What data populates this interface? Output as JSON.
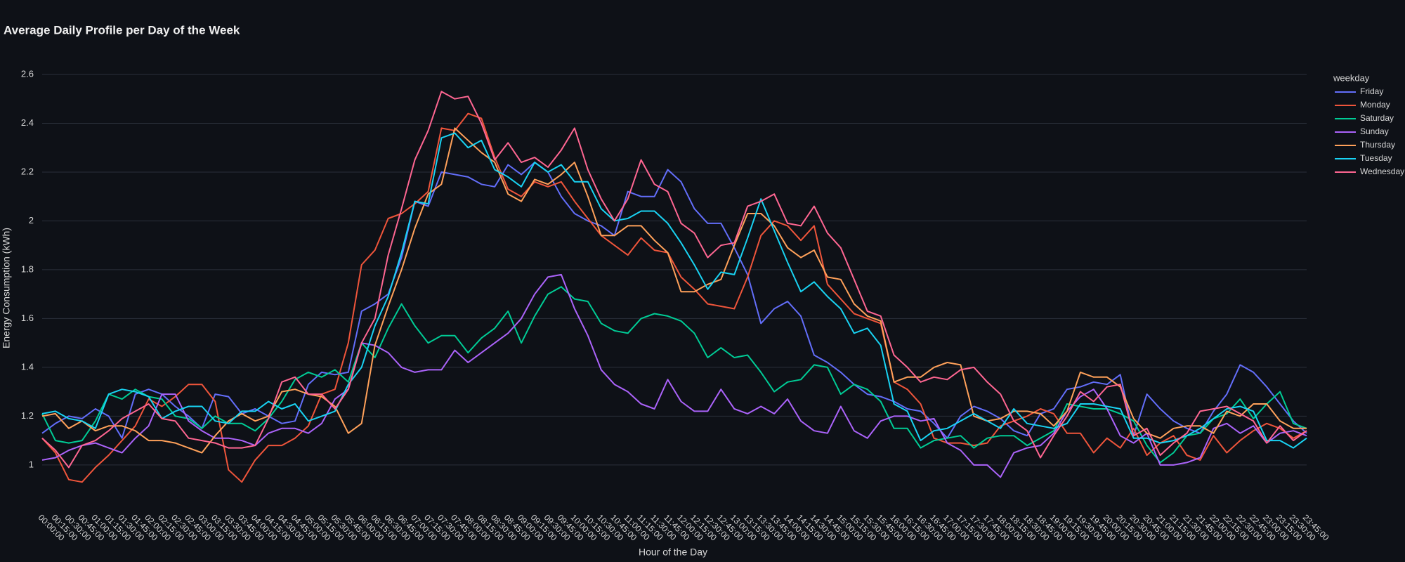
{
  "chart_data": {
    "type": "line",
    "title": "Average Daily Profile per Day of the Week",
    "x_label": "Hour of the Day",
    "y_label": "Energy Consumption (kWh)",
    "legend_title": "weekday",
    "legend": "right",
    "grid": true,
    "ylim": [
      0.85,
      2.65
    ],
    "yticks": [
      1,
      1.2,
      1.4,
      1.6,
      1.8,
      2,
      2.2,
      2.4,
      2.6
    ],
    "categories": [
      "00:00:00",
      "00:15:00",
      "00:30:00",
      "00:45:00",
      "01:00:00",
      "01:15:00",
      "01:30:00",
      "01:45:00",
      "02:00:00",
      "02:15:00",
      "02:30:00",
      "02:45:00",
      "03:00:00",
      "03:15:00",
      "03:30:00",
      "03:45:00",
      "04:00:00",
      "04:15:00",
      "04:30:00",
      "04:45:00",
      "05:00:00",
      "05:15:00",
      "05:30:00",
      "05:45:00",
      "06:00:00",
      "06:15:00",
      "06:30:00",
      "06:45:00",
      "07:00:00",
      "07:15:00",
      "07:30:00",
      "07:45:00",
      "08:00:00",
      "08:15:00",
      "08:30:00",
      "08:45:00",
      "09:00:00",
      "09:15:00",
      "09:30:00",
      "09:45:00",
      "10:00:00",
      "10:15:00",
      "10:30:00",
      "10:45:00",
      "11:00:00",
      "11:15:00",
      "11:30:00",
      "11:45:00",
      "12:00:00",
      "12:15:00",
      "12:30:00",
      "12:45:00",
      "13:00:00",
      "13:15:00",
      "13:30:00",
      "13:45:00",
      "14:00:00",
      "14:15:00",
      "14:30:00",
      "14:45:00",
      "15:00:00",
      "15:15:00",
      "15:30:00",
      "15:45:00",
      "16:00:00",
      "16:15:00",
      "16:30:00",
      "16:45:00",
      "17:00:00",
      "17:15:00",
      "17:30:00",
      "17:45:00",
      "18:00:00",
      "18:15:00",
      "18:30:00",
      "18:45:00",
      "19:00:00",
      "19:15:00",
      "19:30:00",
      "19:45:00",
      "20:00:00",
      "20:15:00",
      "20:30:00",
      "20:45:00",
      "21:00:00",
      "21:15:00",
      "21:30:00",
      "21:45:00",
      "22:00:00",
      "22:15:00",
      "22:30:00",
      "22:45:00",
      "23:00:00",
      "23:15:00",
      "23:30:00",
      "23:45:00"
    ],
    "series": [
      {
        "name": "Friday",
        "color": "#636efa",
        "values": [
          1.13,
          1.17,
          1.2,
          1.19,
          1.23,
          1.2,
          1.11,
          1.29,
          1.31,
          1.29,
          1.24,
          1.2,
          1.15,
          1.29,
          1.28,
          1.21,
          1.23,
          1.2,
          1.17,
          1.18,
          1.33,
          1.38,
          1.37,
          1.38,
          1.63,
          1.66,
          1.7,
          1.85,
          2.08,
          2.06,
          2.2,
          2.19,
          2.18,
          2.15,
          2.14,
          2.23,
          2.19,
          2.24,
          2.2,
          2.1,
          2.03,
          2.0,
          1.98,
          1.94,
          2.12,
          2.1,
          2.1,
          2.21,
          2.16,
          2.05,
          1.99,
          1.99,
          1.89,
          1.78,
          1.58,
          1.64,
          1.67,
          1.61,
          1.45,
          1.42,
          1.38,
          1.33,
          1.29,
          1.28,
          1.26,
          1.23,
          1.22,
          1.17,
          1.11,
          1.2,
          1.24,
          1.22,
          1.19,
          1.14,
          1.12,
          1.21,
          1.23,
          1.31,
          1.32,
          1.34,
          1.33,
          1.37,
          1.12,
          1.29,
          1.23,
          1.18,
          1.15,
          1.13,
          1.22,
          1.29,
          1.41,
          1.38,
          1.32,
          1.25,
          1.18,
          1.13
        ]
      },
      {
        "name": "Monday",
        "color": "#ef553b",
        "values": [
          1.11,
          1.05,
          0.94,
          0.93,
          0.99,
          1.04,
          1.1,
          1.16,
          1.27,
          1.24,
          1.28,
          1.33,
          1.33,
          1.26,
          0.98,
          0.93,
          1.02,
          1.08,
          1.08,
          1.11,
          1.16,
          1.29,
          1.31,
          1.5,
          1.82,
          1.88,
          2.01,
          2.03,
          2.07,
          2.12,
          2.38,
          2.37,
          2.44,
          2.42,
          2.26,
          2.13,
          2.1,
          2.16,
          2.14,
          2.16,
          2.08,
          2.01,
          1.94,
          1.9,
          1.86,
          1.93,
          1.88,
          1.87,
          1.77,
          1.72,
          1.66,
          1.65,
          1.64,
          1.77,
          1.94,
          2.0,
          1.98,
          1.92,
          1.98,
          1.74,
          1.68,
          1.62,
          1.6,
          1.58,
          1.34,
          1.31,
          1.25,
          1.11,
          1.09,
          1.09,
          1.08,
          1.09,
          1.16,
          1.18,
          1.2,
          1.23,
          1.21,
          1.13,
          1.13,
          1.05,
          1.11,
          1.07,
          1.15,
          1.04,
          1.09,
          1.12,
          1.04,
          1.02,
          1.12,
          1.05,
          1.1,
          1.14,
          1.17,
          1.15,
          1.11,
          1.14
        ]
      },
      {
        "name": "Saturday",
        "color": "#00cc96",
        "values": [
          1.21,
          1.1,
          1.09,
          1.1,
          1.18,
          1.29,
          1.27,
          1.31,
          1.28,
          1.27,
          1.2,
          1.19,
          1.15,
          1.2,
          1.17,
          1.17,
          1.14,
          1.19,
          1.26,
          1.35,
          1.38,
          1.36,
          1.39,
          1.34,
          1.5,
          1.44,
          1.56,
          1.66,
          1.57,
          1.5,
          1.53,
          1.53,
          1.46,
          1.52,
          1.56,
          1.63,
          1.5,
          1.61,
          1.7,
          1.73,
          1.68,
          1.67,
          1.58,
          1.55,
          1.54,
          1.6,
          1.62,
          1.61,
          1.59,
          1.54,
          1.44,
          1.48,
          1.44,
          1.45,
          1.38,
          1.3,
          1.34,
          1.35,
          1.41,
          1.4,
          1.29,
          1.33,
          1.31,
          1.26,
          1.15,
          1.15,
          1.07,
          1.1,
          1.11,
          1.12,
          1.07,
          1.11,
          1.12,
          1.12,
          1.08,
          1.11,
          1.14,
          1.25,
          1.24,
          1.23,
          1.23,
          1.21,
          1.18,
          1.08,
          1.01,
          1.05,
          1.12,
          1.13,
          1.19,
          1.21,
          1.27,
          1.19,
          1.25,
          1.3,
          1.17,
          1.15
        ]
      },
      {
        "name": "Sunday",
        "color": "#ab63fa",
        "values": [
          1.02,
          1.03,
          1.06,
          1.08,
          1.09,
          1.07,
          1.05,
          1.11,
          1.16,
          1.29,
          1.29,
          1.18,
          1.14,
          1.11,
          1.11,
          1.1,
          1.08,
          1.13,
          1.15,
          1.15,
          1.13,
          1.17,
          1.27,
          1.31,
          1.5,
          1.49,
          1.46,
          1.4,
          1.38,
          1.39,
          1.39,
          1.47,
          1.42,
          1.46,
          1.5,
          1.54,
          1.6,
          1.7,
          1.77,
          1.78,
          1.64,
          1.53,
          1.39,
          1.33,
          1.3,
          1.25,
          1.23,
          1.35,
          1.26,
          1.22,
          1.22,
          1.31,
          1.23,
          1.21,
          1.24,
          1.21,
          1.27,
          1.18,
          1.14,
          1.13,
          1.24,
          1.14,
          1.11,
          1.18,
          1.2,
          1.2,
          1.18,
          1.19,
          1.09,
          1.06,
          1.0,
          1.0,
          0.95,
          1.05,
          1.07,
          1.08,
          1.13,
          1.22,
          1.28,
          1.31,
          1.23,
          1.12,
          1.09,
          1.13,
          1.0,
          1.0,
          1.01,
          1.03,
          1.15,
          1.17,
          1.13,
          1.16,
          1.09,
          1.13,
          1.14,
          1.12
        ]
      },
      {
        "name": "Thursday",
        "color": "#ffa15a",
        "values": [
          1.2,
          1.21,
          1.15,
          1.18,
          1.14,
          1.16,
          1.16,
          1.14,
          1.1,
          1.1,
          1.09,
          1.07,
          1.05,
          1.12,
          1.18,
          1.21,
          1.18,
          1.2,
          1.3,
          1.31,
          1.29,
          1.28,
          1.24,
          1.13,
          1.17,
          1.49,
          1.65,
          1.8,
          1.97,
          2.11,
          2.15,
          2.38,
          2.33,
          2.28,
          2.24,
          2.11,
          2.08,
          2.17,
          2.15,
          2.19,
          2.24,
          2.1,
          1.94,
          1.94,
          1.98,
          1.98,
          1.92,
          1.87,
          1.71,
          1.71,
          1.74,
          1.76,
          1.9,
          2.03,
          2.03,
          1.98,
          1.89,
          1.85,
          1.88,
          1.77,
          1.76,
          1.66,
          1.61,
          1.59,
          1.34,
          1.36,
          1.36,
          1.4,
          1.42,
          1.41,
          1.2,
          1.18,
          1.19,
          1.22,
          1.22,
          1.21,
          1.16,
          1.22,
          1.38,
          1.36,
          1.36,
          1.32,
          1.19,
          1.13,
          1.11,
          1.15,
          1.16,
          1.16,
          1.13,
          1.22,
          1.2,
          1.25,
          1.25,
          1.18,
          1.15,
          1.15
        ]
      },
      {
        "name": "Tuesday",
        "color": "#19d3f3",
        "values": [
          1.21,
          1.22,
          1.19,
          1.18,
          1.15,
          1.29,
          1.31,
          1.3,
          1.28,
          1.19,
          1.22,
          1.24,
          1.24,
          1.18,
          1.17,
          1.22,
          1.22,
          1.26,
          1.23,
          1.25,
          1.18,
          1.2,
          1.22,
          1.33,
          1.4,
          1.57,
          1.69,
          1.87,
          2.08,
          2.07,
          2.34,
          2.36,
          2.3,
          2.33,
          2.21,
          2.18,
          2.14,
          2.24,
          2.2,
          2.23,
          2.16,
          2.16,
          2.05,
          2.0,
          2.01,
          2.04,
          2.04,
          1.99,
          1.91,
          1.82,
          1.72,
          1.79,
          1.78,
          1.93,
          2.09,
          1.96,
          1.83,
          1.71,
          1.75,
          1.69,
          1.64,
          1.54,
          1.56,
          1.49,
          1.25,
          1.22,
          1.1,
          1.14,
          1.15,
          1.18,
          1.21,
          1.18,
          1.15,
          1.23,
          1.17,
          1.16,
          1.15,
          1.17,
          1.25,
          1.25,
          1.24,
          1.23,
          1.11,
          1.11,
          1.09,
          1.1,
          1.12,
          1.15,
          1.19,
          1.23,
          1.24,
          1.22,
          1.1,
          1.1,
          1.07,
          1.11
        ]
      },
      {
        "name": "Wednesday",
        "color": "#ff6692",
        "values": [
          1.11,
          1.06,
          0.99,
          1.08,
          1.1,
          1.14,
          1.19,
          1.22,
          1.25,
          1.19,
          1.18,
          1.11,
          1.1,
          1.09,
          1.07,
          1.07,
          1.08,
          1.19,
          1.34,
          1.36,
          1.29,
          1.29,
          1.23,
          1.31,
          1.5,
          1.6,
          1.86,
          2.05,
          2.25,
          2.37,
          2.53,
          2.5,
          2.51,
          2.4,
          2.25,
          2.32,
          2.24,
          2.26,
          2.22,
          2.29,
          2.38,
          2.21,
          2.09,
          2.0,
          2.09,
          2.25,
          2.15,
          2.12,
          1.99,
          1.95,
          1.85,
          1.9,
          1.91,
          2.06,
          2.08,
          2.11,
          1.99,
          1.98,
          2.06,
          1.95,
          1.89,
          1.76,
          1.63,
          1.61,
          1.45,
          1.4,
          1.34,
          1.36,
          1.35,
          1.39,
          1.4,
          1.34,
          1.29,
          1.18,
          1.14,
          1.03,
          1.12,
          1.2,
          1.3,
          1.26,
          1.32,
          1.33,
          1.12,
          1.15,
          1.04,
          1.09,
          1.13,
          1.22,
          1.23,
          1.24,
          1.21,
          1.18,
          1.09,
          1.16,
          1.1,
          1.14
        ]
      }
    ]
  }
}
